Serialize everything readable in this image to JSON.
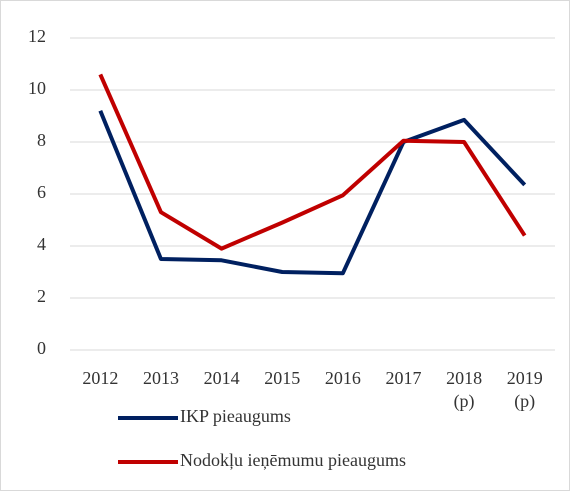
{
  "chart_data": {
    "type": "line",
    "categories": [
      "2012",
      "2013",
      "2014",
      "2015",
      "2016",
      "2017",
      "2018 (p)",
      "2019 (p)"
    ],
    "series": [
      {
        "name": "IKP pieaugums",
        "color": "#002060",
        "values": [
          9.2,
          3.5,
          3.45,
          3.0,
          2.95,
          8.0,
          8.85,
          6.35
        ]
      },
      {
        "name": "Nodokļu ieņēmumu pieaugums",
        "color": "#c00000",
        "values": [
          10.6,
          5.3,
          3.9,
          4.9,
          5.95,
          8.05,
          8.0,
          4.4
        ]
      }
    ],
    "ylim": [
      0,
      12
    ],
    "yticks": [
      0,
      2,
      4,
      6,
      8,
      10,
      12
    ],
    "grid": true,
    "legend": "bottom"
  }
}
